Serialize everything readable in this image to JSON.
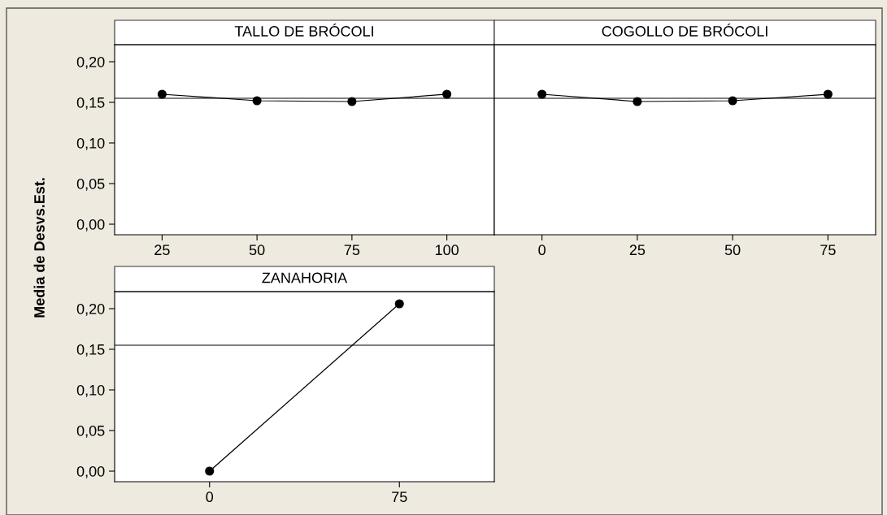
{
  "chart_data": [
    {
      "type": "line",
      "title": "TALLO DE BRÓCOLI",
      "ylabel": "Media de Desvs.Est.",
      "categories": [
        "25",
        "50",
        "75",
        "100"
      ],
      "series": [
        {
          "color": "#000000",
          "values": [
            0.16,
            0.152,
            0.151,
            0.16
          ]
        }
      ],
      "ylim": [
        -0.013,
        0.221
      ],
      "yticks": [
        {
          "value": 0.0,
          "label": "0,00"
        },
        {
          "value": 0.05,
          "label": "0,05"
        },
        {
          "value": 0.1,
          "label": "0,10"
        },
        {
          "value": 0.15,
          "label": "0,15"
        },
        {
          "value": 0.2,
          "label": "0,20"
        }
      ],
      "ref_lines": [
        {
          "axis": "y",
          "value": 0.155,
          "color": "#000000"
        }
      ],
      "marker": "circle",
      "line_style": "solid",
      "grid": false
    },
    {
      "type": "line",
      "title": "COGOLLO DE BRÓCOLI",
      "categories": [
        "0",
        "25",
        "50",
        "75"
      ],
      "series": [
        {
          "color": "#000000",
          "values": [
            0.16,
            0.151,
            0.152,
            0.16
          ]
        }
      ],
      "ylim": [
        -0.013,
        0.221
      ],
      "ref_lines": [
        {
          "axis": "y",
          "value": 0.155,
          "color": "#000000"
        }
      ],
      "marker": "circle",
      "line_style": "solid",
      "grid": false,
      "tick_labels": "x"
    },
    {
      "type": "line",
      "title": "ZANAHORIA",
      "categories": [
        "0",
        "75"
      ],
      "series": [
        {
          "color": "#000000",
          "values": [
            0.0,
            0.206
          ]
        }
      ],
      "ylim": [
        -0.013,
        0.221
      ],
      "yticks": [
        {
          "value": 0.0,
          "label": "0,00"
        },
        {
          "value": 0.05,
          "label": "0,05"
        },
        {
          "value": 0.1,
          "label": "0,10"
        },
        {
          "value": 0.15,
          "label": "0,15"
        },
        {
          "value": 0.2,
          "label": "0,20"
        }
      ],
      "ref_lines": [
        {
          "axis": "y",
          "value": 0.155,
          "color": "#000000"
        }
      ],
      "marker": "circle",
      "line_style": "solid",
      "grid": false
    }
  ]
}
